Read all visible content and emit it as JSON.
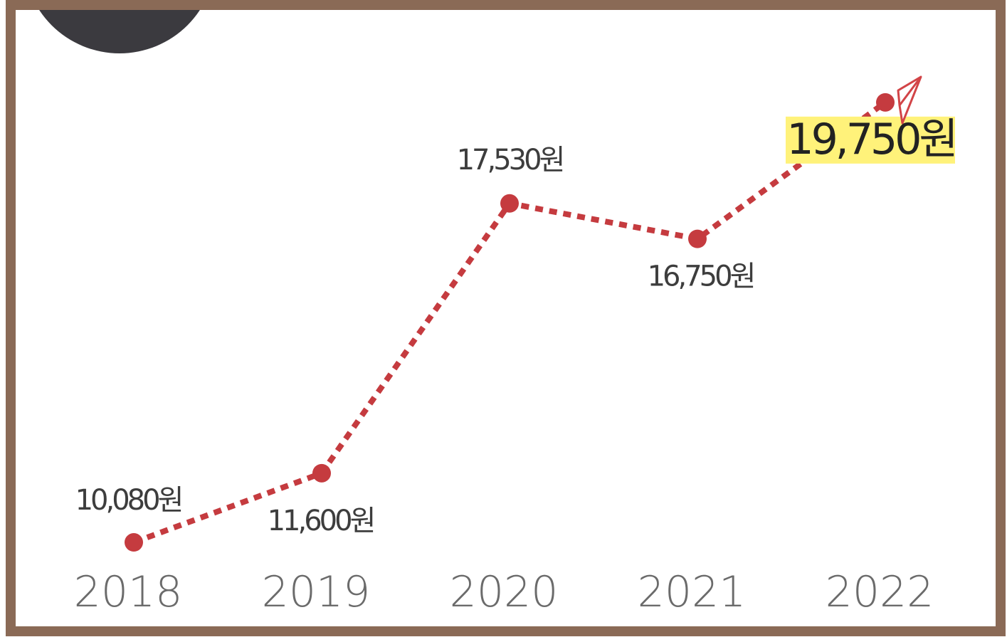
{
  "chart_data": {
    "type": "line",
    "categories": [
      "2018",
      "2019",
      "2020",
      "2021",
      "2022"
    ],
    "values": [
      10080,
      11600,
      17530,
      16750,
      19750
    ],
    "value_labels": [
      "10,080원",
      "11,600원",
      "17,530원",
      "16,750원",
      "19,750원"
    ],
    "highlight_index": 4,
    "ylim": [
      8000,
      22000
    ],
    "grid": false,
    "line_style": "dotted",
    "colors": {
      "line": "#c53b3f",
      "frame": "#8a6a56",
      "highlight": "#fff27a",
      "tick_text": "#6b6b6b",
      "value_text": "#3d3d3d"
    }
  },
  "decorations": {
    "top_left": "dish-image",
    "end_marker": "paper-plane-arrow-icon"
  }
}
